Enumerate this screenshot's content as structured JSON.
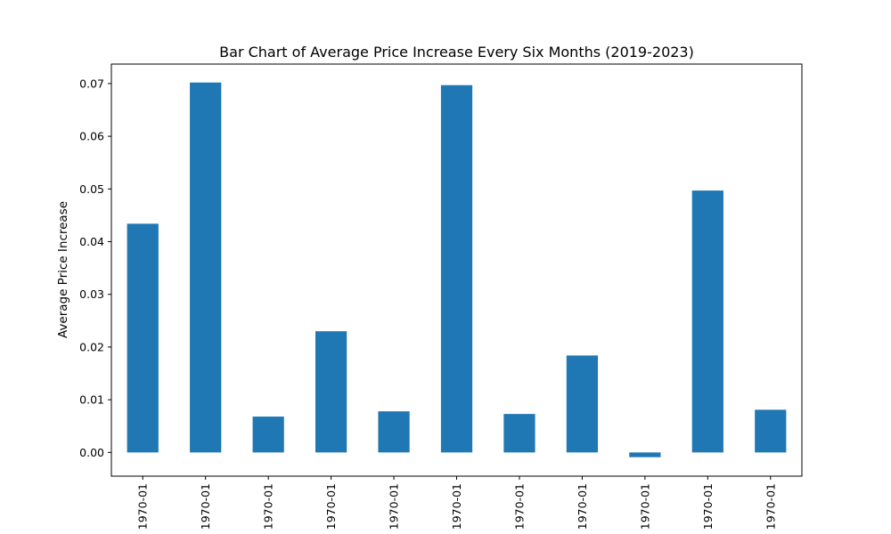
{
  "chart_data": {
    "type": "bar",
    "title": "Bar Chart of Average Price Increase Every Six Months (2019-2023)",
    "xlabel": "",
    "ylabel": "Average Price Increase",
    "categories": [
      "1970-01",
      "1970-01",
      "1970-01",
      "1970-01",
      "1970-01",
      "1970-01",
      "1970-01",
      "1970-01",
      "1970-01",
      "1970-01",
      "1970-01"
    ],
    "values": [
      0.0434,
      0.0702,
      0.0068,
      0.023,
      0.0078,
      0.0697,
      0.0073,
      0.0184,
      -0.0009,
      0.0497,
      0.0081
    ],
    "ylim": [
      -0.0045,
      0.0737
    ],
    "yticks": [
      0.0,
      0.01,
      0.02,
      0.03,
      0.04,
      0.05,
      0.06,
      0.07
    ],
    "ytick_labels": [
      "0.00",
      "0.01",
      "0.02",
      "0.03",
      "0.04",
      "0.05",
      "0.06",
      "0.07"
    ],
    "bar_color": "#1f77b4",
    "grid": false,
    "legend": "none"
  }
}
